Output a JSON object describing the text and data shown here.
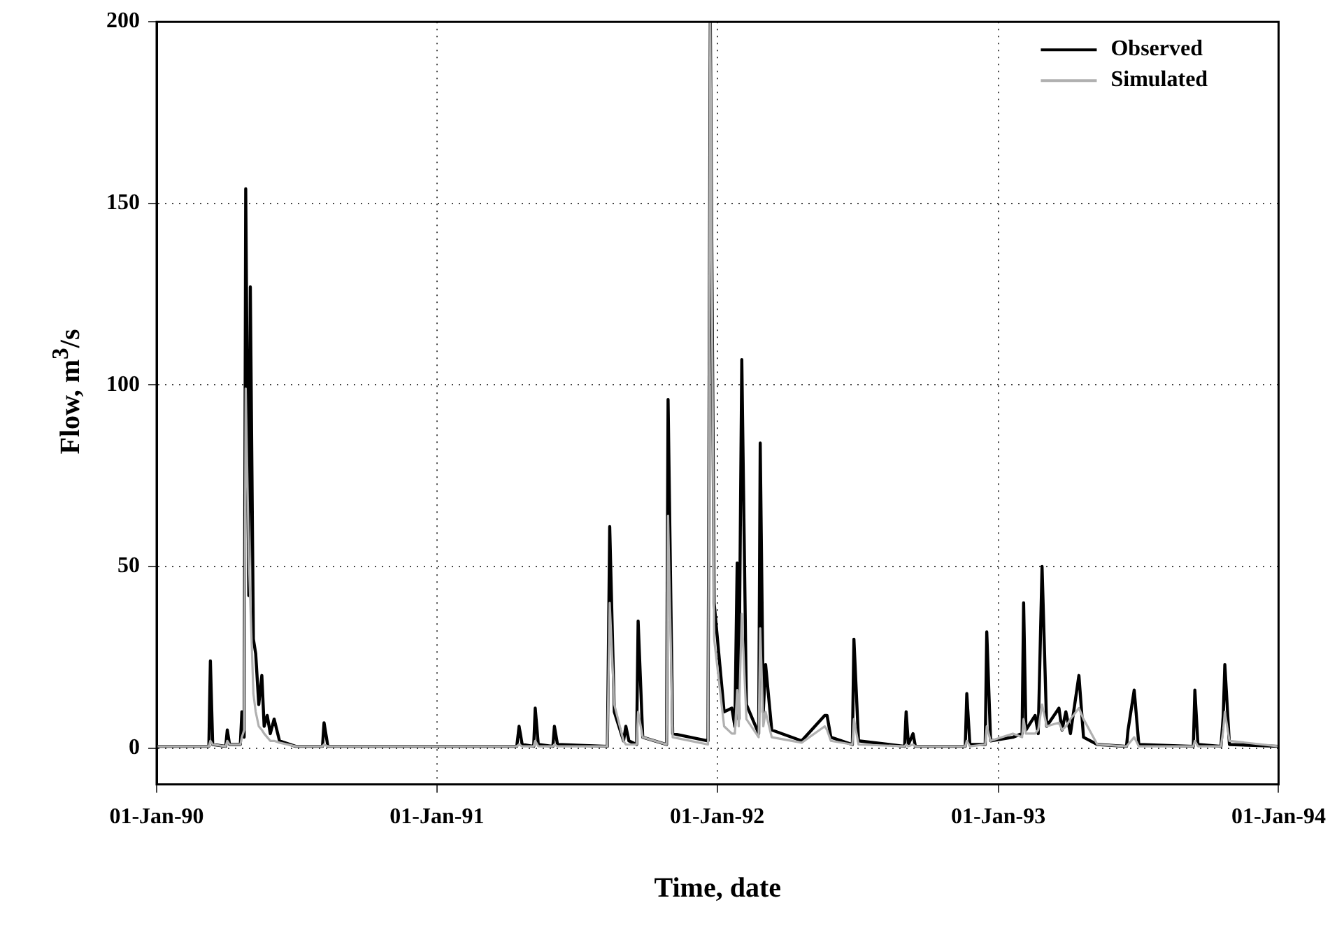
{
  "chart_data": {
    "type": "line",
    "xlabel": "Time, date",
    "ylabel": "Flow, m$^{3}$/s",
    "legend": "top right",
    "grid": true,
    "marker": "none",
    "line_style": "solid",
    "x": [
      "1990-01-01",
      "1990-03-10",
      "1990-03-12",
      "1990-03-15",
      "1990-04-01",
      "1990-04-03",
      "1990-04-06",
      "1990-04-20",
      "1990-04-22",
      "1990-04-25",
      "1990-04-27",
      "1990-05-01",
      "1990-05-03",
      "1990-05-07",
      "1990-05-10",
      "1990-05-14",
      "1990-05-18",
      "1990-05-21",
      "1990-05-25",
      "1990-05-29",
      "1990-06-03",
      "1990-06-10",
      "1990-07-01",
      "1990-08-05",
      "1990-08-07",
      "1990-08-12",
      "1991-04-15",
      "1991-04-18",
      "1991-04-22",
      "1991-05-07",
      "1991-05-09",
      "1991-05-13",
      "1991-06-01",
      "1991-06-03",
      "1991-06-07",
      "1991-08-11",
      "1991-08-14",
      "1991-08-20",
      "1991-09-01",
      "1991-09-04",
      "1991-09-08",
      "1991-09-18",
      "1991-09-20",
      "1991-09-26",
      "1991-10-27",
      "1991-10-29",
      "1991-11-04",
      "1991-12-20",
      "1991-12-23",
      "1991-12-28",
      "1992-01-10",
      "1992-01-20",
      "1992-01-24",
      "1992-01-27",
      "1992-01-29",
      "1992-02-02",
      "1992-02-08",
      "1992-02-24",
      "1992-02-26",
      "1992-03-01",
      "1992-03-04",
      "1992-03-12",
      "1992-04-20",
      "1992-05-20",
      "1992-05-23",
      "1992-05-28",
      "1992-06-25",
      "1992-06-27",
      "1992-07-03",
      "1992-09-01",
      "1992-09-03",
      "1992-09-06",
      "1992-09-12",
      "1992-09-15",
      "1992-11-19",
      "1992-11-21",
      "1992-11-25",
      "1992-12-15",
      "1992-12-17",
      "1992-12-22",
      "1993-01-20",
      "1993-02-01",
      "1993-02-03",
      "1993-02-06",
      "1993-02-18",
      "1993-02-22",
      "1993-02-27",
      "1993-03-05",
      "1993-03-21",
      "1993-03-25",
      "1993-03-30",
      "1993-04-05",
      "1993-04-16",
      "1993-04-22",
      "1993-05-10",
      "1993-06-17",
      "1993-06-19",
      "1993-06-27",
      "1993-07-03",
      "1993-09-12",
      "1993-09-14",
      "1993-09-18",
      "1993-10-18",
      "1993-10-21",
      "1993-10-23",
      "1993-10-29",
      "1994-01-01"
    ],
    "series": [
      {
        "name": "Observed",
        "color": "#000000",
        "values": [
          0.5,
          0.5,
          24,
          1,
          0.5,
          5,
          1,
          1,
          10,
          3,
          154,
          42,
          127,
          30,
          26,
          12,
          20,
          6,
          9,
          4,
          8,
          2,
          0.5,
          0.5,
          7,
          0.5,
          0.5,
          6,
          1,
          0.5,
          11,
          1,
          0.5,
          6,
          1,
          0.5,
          61,
          10,
          2,
          6,
          2,
          1,
          35,
          3,
          1,
          96,
          4,
          2,
          200,
          40,
          10,
          11,
          6,
          51,
          8,
          107,
          12,
          4,
          84,
          10,
          23,
          5,
          2,
          9,
          9,
          3,
          1,
          30,
          2,
          0.5,
          10,
          1,
          4,
          0.5,
          0.5,
          15,
          1,
          1,
          32,
          2,
          3,
          4,
          40,
          5,
          9,
          4,
          50,
          6,
          11,
          5,
          10,
          4,
          20,
          3,
          1,
          0.5,
          5,
          16,
          1,
          0.5,
          16,
          1,
          0.5,
          9,
          23,
          1,
          0.5
        ]
      },
      {
        "name": "Simulated",
        "color": "#b0b0b0",
        "values": [
          0.5,
          0.5,
          2,
          1,
          0.5,
          2,
          1,
          1,
          3,
          5,
          99,
          53,
          40,
          15,
          10,
          6,
          5,
          4,
          3,
          2,
          2,
          1.5,
          0.5,
          0.5,
          1,
          0.5,
          0.5,
          1,
          0.5,
          0.5,
          2,
          0.5,
          0.5,
          1,
          0.5,
          0.5,
          40,
          12,
          2,
          1,
          1,
          1,
          10,
          3,
          1,
          64,
          3,
          1,
          200,
          30,
          6,
          4,
          4,
          16,
          6,
          37,
          8,
          3,
          33,
          6,
          10,
          3,
          1.5,
          6,
          5,
          2,
          1,
          8,
          1,
          0.5,
          1,
          0.5,
          1,
          0.5,
          0.5,
          2,
          0.5,
          1,
          6,
          2,
          4,
          3,
          8,
          4,
          4,
          5,
          12,
          6,
          7,
          5,
          6,
          8,
          11,
          8,
          1,
          0.5,
          1,
          3,
          0.5,
          0.5,
          2,
          0.5,
          0.5,
          5,
          10,
          2,
          0.5
        ]
      }
    ],
    "xlim": [
      "1990-01-01",
      "1994-01-01"
    ],
    "xticks": [
      {
        "value": "1990-01-01",
        "label": "01-Jan-90"
      },
      {
        "value": "1991-01-01",
        "label": "01-Jan-91"
      },
      {
        "value": "1992-01-01",
        "label": "01-Jan-92"
      },
      {
        "value": "1993-01-01",
        "label": "01-Jan-93"
      },
      {
        "value": "1994-01-01",
        "label": "01-Jan-94"
      }
    ],
    "ylim": [
      -10,
      200
    ],
    "yticks": [
      0,
      50,
      100,
      150,
      200
    ]
  }
}
